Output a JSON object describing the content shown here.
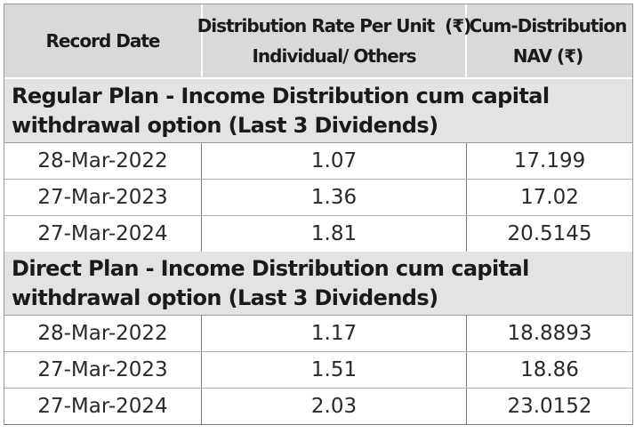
{
  "header": {
    "record_date": "Record Date",
    "rate_line1": "Distribution Rate Per Unit  (₹)",
    "rate_line2": "Individual/ Others",
    "nav_line1": "Cum-Distribution",
    "nav_line2": "NAV (₹)"
  },
  "sections": [
    {
      "title": "Regular Plan - Income Distribution cum capital withdrawal option (Last 3 Dividends)",
      "rows": [
        {
          "date": "28-Mar-2022",
          "rate": "1.07",
          "nav": "17.199"
        },
        {
          "date": "27-Mar-2023",
          "rate": "1.36",
          "nav": "17.02"
        },
        {
          "date": "27-Mar-2024",
          "rate": "1.81",
          "nav": "20.5145"
        }
      ]
    },
    {
      "title": "Direct Plan - Income Distribution cum capital withdrawal option (Last 3 Dividends)",
      "rows": [
        {
          "date": "28-Mar-2022",
          "rate": "1.17",
          "nav": "18.8893"
        },
        {
          "date": "27-Mar-2023",
          "rate": "1.51",
          "nav": "18.86"
        },
        {
          "date": "27-Mar-2024",
          "rate": "2.03",
          "nav": "23.0152"
        }
      ]
    }
  ]
}
